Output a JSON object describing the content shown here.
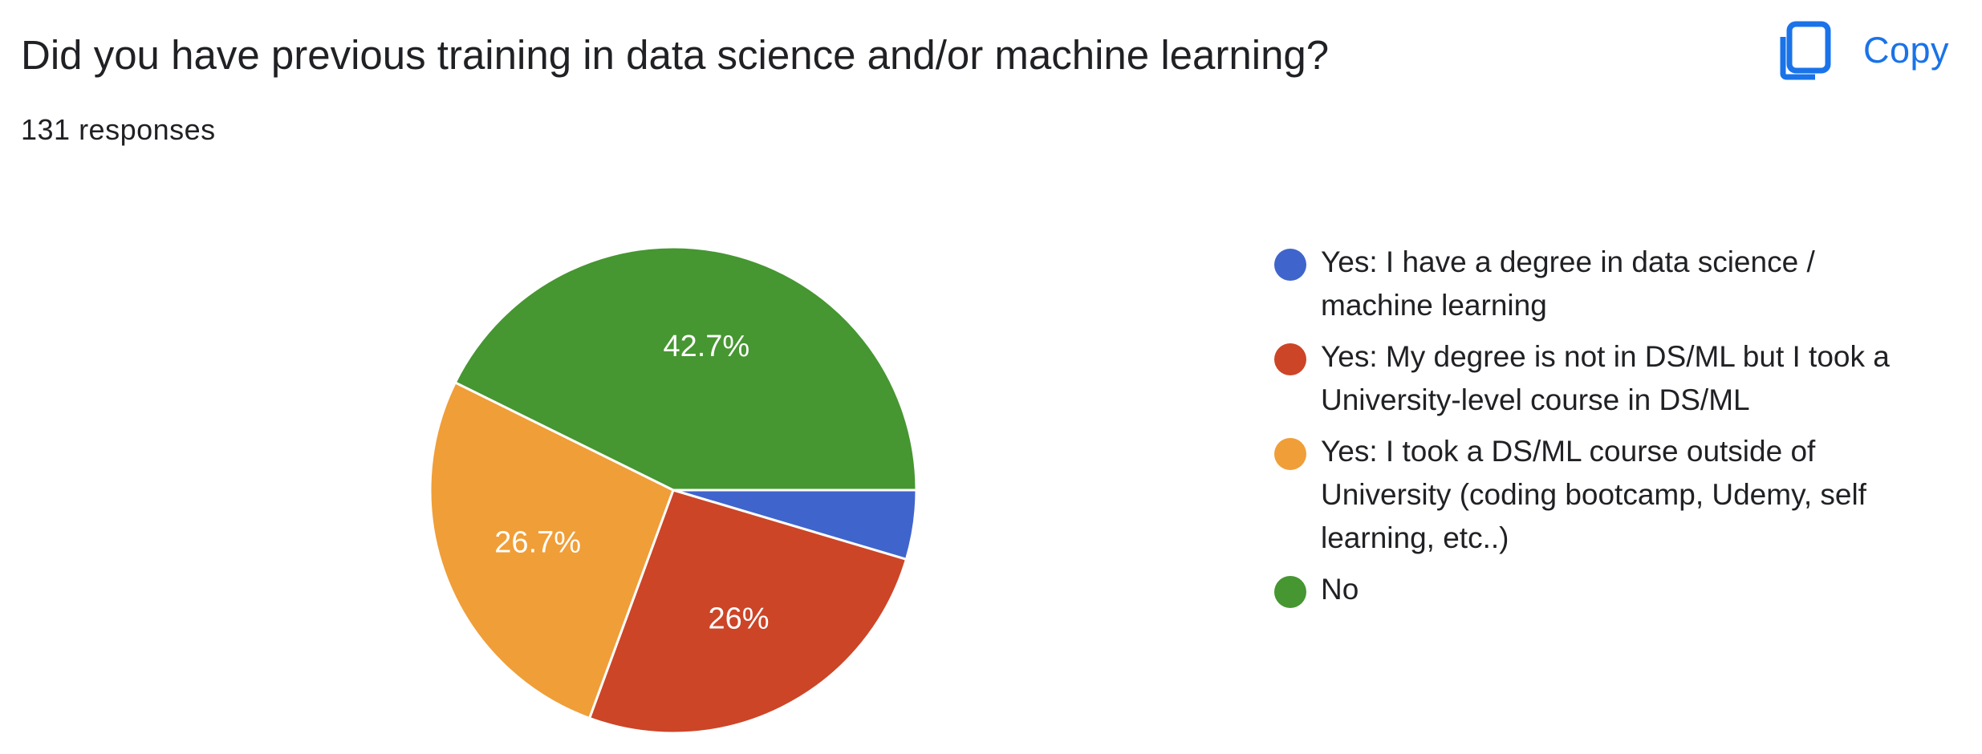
{
  "question": "Did you have previous training in data science and/or machine learning?",
  "responses": "131 responses",
  "copy_label": "Copy",
  "copy_icon": "copy-icon",
  "chart_data": {
    "type": "pie",
    "title": "Did you have previous training in data science and/or machine learning?",
    "slices": [
      {
        "name": "Yes: I have a degree in data science / machine learning",
        "value": 4.6,
        "label": "",
        "color": "#3f65cc"
      },
      {
        "name": "Yes: My degree is not in DS/ML but I took a University-level course in DS/ML",
        "value": 26.0,
        "label": "26%",
        "color": "#cc4527"
      },
      {
        "name": "Yes: I took a DS/ML course outside of University (coding bootcamp, Udemy, self learning, etc..)",
        "value": 26.7,
        "label": "26.7%",
        "color": "#f09e38"
      },
      {
        "name": "No",
        "value": 42.7,
        "label": "42.7%",
        "color": "#469631"
      }
    ],
    "legend_position": "right"
  }
}
